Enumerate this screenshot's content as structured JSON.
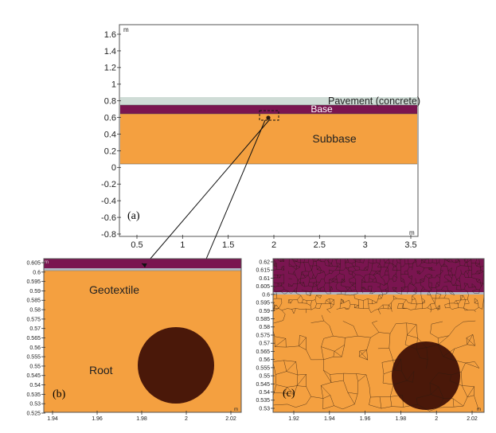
{
  "colors": {
    "pavement": "#cfdcd6",
    "base": "#7a1550",
    "subbase": "#f4a040",
    "root": "#4a1809",
    "geotextile": "#b0b8c4",
    "mesh": "#2a1a10",
    "axis": "#333333"
  },
  "panel_a": {
    "tag": "(a)",
    "unit_y": "m",
    "unit_x": "m",
    "x_ticks": [
      "0.5",
      "1",
      "1.5",
      "2",
      "2.5",
      "3",
      "3.5"
    ],
    "y_ticks": [
      "1.6",
      "1.4",
      "1.2",
      "1",
      "0.8",
      "0.6",
      "0.4",
      "0.2",
      "0",
      "-0.2",
      "-0.4",
      "-0.6",
      "-0.8"
    ],
    "labels": {
      "pavement": "Pavement (concrete)",
      "base": "Base",
      "subbase": "Subbase"
    }
  },
  "panel_b": {
    "tag": "(b)",
    "unit_y": "m",
    "unit_x": "m",
    "x_ticks": [
      "1.94",
      "1.96",
      "1.98",
      "2",
      "2.02"
    ],
    "y_ticks": [
      "0.605",
      "0.6",
      "0.595",
      "0.59",
      "0.585",
      "0.58",
      "0.575",
      "0.57",
      "0.565",
      "0.56",
      "0.555",
      "0.55",
      "0.545",
      "0.54",
      "0.535",
      "0.53",
      "0.525"
    ],
    "labels": {
      "geotextile": "Geotextile",
      "root": "Root"
    }
  },
  "panel_c": {
    "tag": "(c)",
    "unit_x": "m",
    "x_ticks": [
      "1.92",
      "1.94",
      "1.96",
      "1.98",
      "2",
      "2.02"
    ],
    "y_ticks": [
      "0.62",
      "0.615",
      "0.61",
      "0.605",
      "0.6",
      "0.595",
      "0.59",
      "0.585",
      "0.58",
      "0.575",
      "0.57",
      "0.565",
      "0.56",
      "0.555",
      "0.55",
      "0.545",
      "0.54",
      "0.535",
      "0.53"
    ]
  }
}
